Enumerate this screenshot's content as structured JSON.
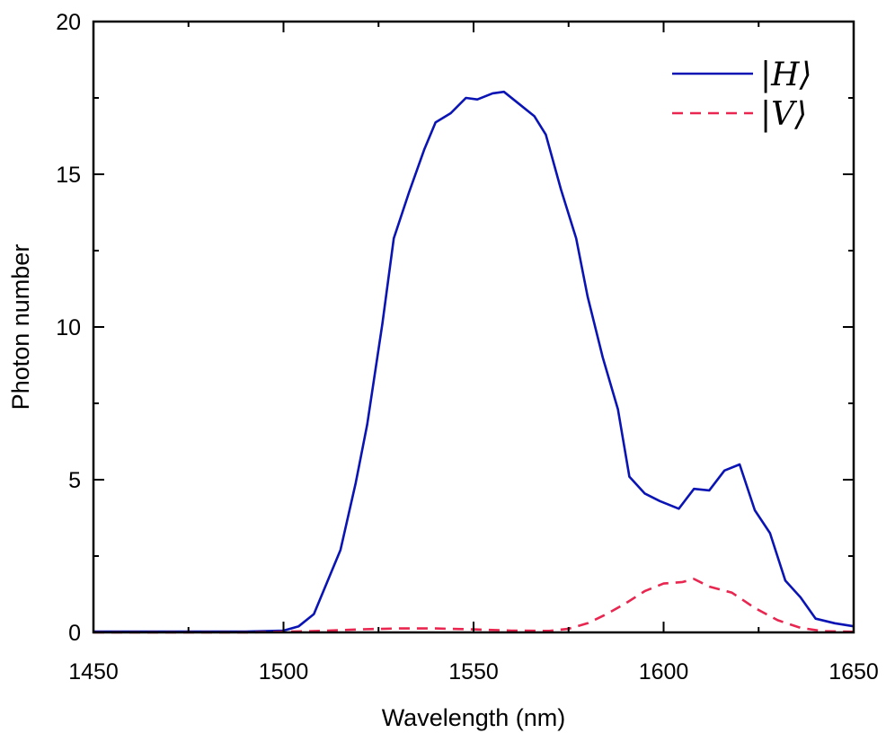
{
  "chart_data": {
    "type": "line",
    "title": "",
    "xlabel": "Wavelength (nm)",
    "ylabel": "Photon number",
    "xlim": [
      1450,
      1650
    ],
    "ylim": [
      0,
      20
    ],
    "xticks": [
      1450,
      1500,
      1550,
      1600,
      1650
    ],
    "yticks": [
      0,
      5,
      10,
      15,
      20
    ],
    "grid": false,
    "legend_position": "top-right",
    "series": [
      {
        "name": "|H⟩",
        "label_letter": "H",
        "color": "#0a14b4",
        "style": "solid",
        "x": [
          1450,
          1460,
          1470,
          1480,
          1490,
          1500,
          1504,
          1508,
          1511,
          1515,
          1519,
          1522,
          1526,
          1529,
          1533,
          1537,
          1540,
          1544,
          1548,
          1551,
          1555,
          1558,
          1562,
          1566,
          1569,
          1573,
          1577,
          1580,
          1584,
          1588,
          1591,
          1595,
          1599,
          1604,
          1608,
          1612,
          1616,
          1620,
          1624,
          1628,
          1632,
          1636,
          1640,
          1645,
          1650
        ],
        "values": [
          0.03,
          0.03,
          0.03,
          0.03,
          0.03,
          0.06,
          0.2,
          0.6,
          1.5,
          2.7,
          4.9,
          6.8,
          10.1,
          12.9,
          14.4,
          15.8,
          16.7,
          17.0,
          17.5,
          17.45,
          17.65,
          17.7,
          17.3,
          16.9,
          16.3,
          14.5,
          12.9,
          11.0,
          9.0,
          7.3,
          5.1,
          4.55,
          4.3,
          4.05,
          4.7,
          4.65,
          5.3,
          5.5,
          4.0,
          3.25,
          1.7,
          1.15,
          0.45,
          0.3,
          0.2
        ]
      },
      {
        "name": "|V⟩",
        "label_letter": "V",
        "color": "#e8264f",
        "style": "dashed",
        "x": [
          1450,
          1470,
          1490,
          1500,
          1510,
          1520,
          1530,
          1540,
          1550,
          1560,
          1570,
          1575,
          1580,
          1585,
          1590,
          1595,
          1600,
          1605,
          1608,
          1612,
          1618,
          1624,
          1630,
          1636,
          1642,
          1650
        ],
        "values": [
          0.0,
          0.0,
          0.0,
          0.02,
          0.05,
          0.1,
          0.13,
          0.13,
          0.1,
          0.06,
          0.05,
          0.12,
          0.3,
          0.6,
          0.95,
          1.35,
          1.6,
          1.65,
          1.75,
          1.5,
          1.3,
          0.8,
          0.4,
          0.15,
          0.04,
          0.02
        ]
      }
    ]
  }
}
